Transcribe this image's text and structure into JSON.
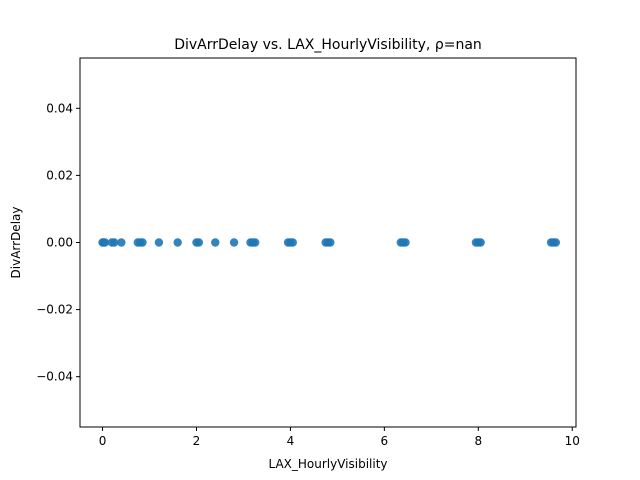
{
  "chart_data": {
    "type": "scatter",
    "title": "DivArrDelay vs. LAX_HourlyVisibility, ρ=nan",
    "xlabel": "LAX_HourlyVisibility",
    "ylabel": "DivArrDelay",
    "xlim": [
      -0.48,
      10.08
    ],
    "ylim": [
      -0.055,
      0.055
    ],
    "x_ticks": [
      0,
      2,
      4,
      6,
      8,
      10
    ],
    "x_tick_labels": [
      "0",
      "2",
      "4",
      "6",
      "8",
      "10"
    ],
    "y_ticks": [
      -0.04,
      -0.02,
      0.0,
      0.02,
      0.04
    ],
    "y_tick_labels": [
      "−0.04",
      "−0.02",
      "0.00",
      "0.02",
      "0.04"
    ],
    "grid": false,
    "legend": "none",
    "color": "#1f77b4",
    "points": [
      {
        "x": 0.0,
        "y": 0
      },
      {
        "x": 0.02,
        "y": 0
      },
      {
        "x": 0.05,
        "y": 0
      },
      {
        "x": 0.2,
        "y": 0
      },
      {
        "x": 0.25,
        "y": 0
      },
      {
        "x": 0.4,
        "y": 0
      },
      {
        "x": 0.75,
        "y": 0
      },
      {
        "x": 0.8,
        "y": 0
      },
      {
        "x": 0.85,
        "y": 0
      },
      {
        "x": 1.2,
        "y": 0
      },
      {
        "x": 1.6,
        "y": 0
      },
      {
        "x": 2.0,
        "y": 0
      },
      {
        "x": 2.05,
        "y": 0
      },
      {
        "x": 2.4,
        "y": 0
      },
      {
        "x": 2.8,
        "y": 0
      },
      {
        "x": 3.15,
        "y": 0
      },
      {
        "x": 3.2,
        "y": 0
      },
      {
        "x": 3.25,
        "y": 0
      },
      {
        "x": 3.95,
        "y": 0
      },
      {
        "x": 4.0,
        "y": 0
      },
      {
        "x": 4.05,
        "y": 0
      },
      {
        "x": 4.75,
        "y": 0
      },
      {
        "x": 4.8,
        "y": 0
      },
      {
        "x": 4.85,
        "y": 0
      },
      {
        "x": 6.35,
        "y": 0
      },
      {
        "x": 6.4,
        "y": 0
      },
      {
        "x": 6.45,
        "y": 0
      },
      {
        "x": 7.95,
        "y": 0
      },
      {
        "x": 8.0,
        "y": 0
      },
      {
        "x": 8.05,
        "y": 0
      },
      {
        "x": 9.55,
        "y": 0
      },
      {
        "x": 9.6,
        "y": 0
      },
      {
        "x": 9.65,
        "y": 0
      }
    ]
  }
}
